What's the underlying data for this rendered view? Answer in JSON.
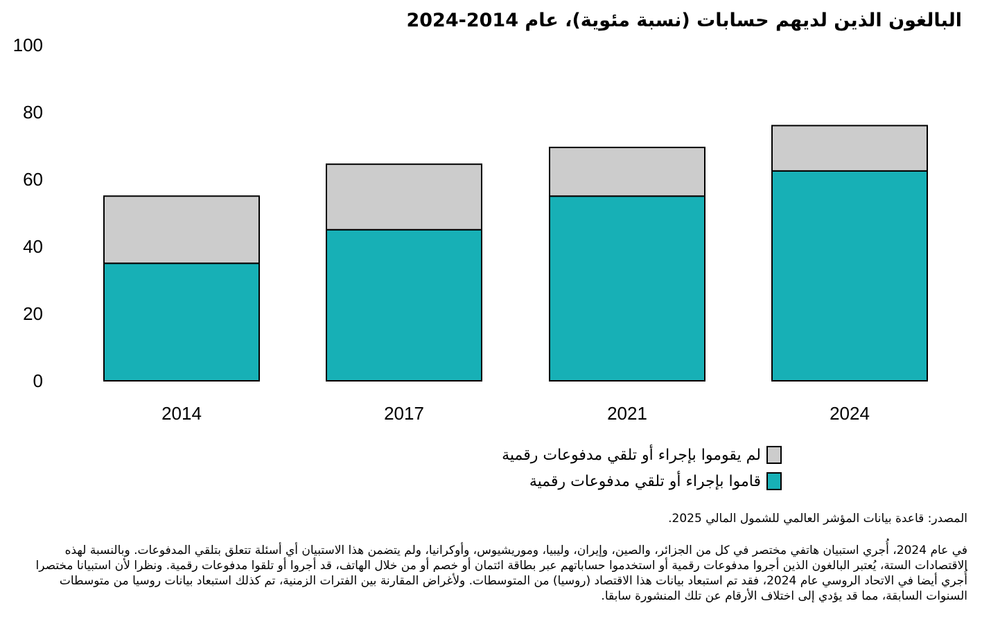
{
  "title": "البالغون الذين لديهم حسابات (نسبة مئوية)، عام 2014-2024",
  "chart_data": {
    "type": "bar",
    "stacked": true,
    "categories": [
      "2014",
      "2017",
      "2021",
      "2024"
    ],
    "series": [
      {
        "name": "قاموا بإجراء أو تلقي مدفوعات رقمية",
        "values": [
          35,
          45,
          55,
          62.5
        ],
        "color": "#17b0b6"
      },
      {
        "name": "لم يقوموا بإجراء أو تلقي مدفوعات رقمية",
        "values": [
          20,
          19.5,
          14.5,
          13.5
        ],
        "color": "#cccccc"
      }
    ],
    "yticks": [
      "0",
      "20",
      "40",
      "60",
      "80",
      "100"
    ],
    "ylim": [
      0,
      100
    ],
    "grid": false,
    "legend_position": "bottom-right"
  },
  "legend": [
    {
      "label": "لم يقوموا بإجراء أو تلقي مدفوعات رقمية",
      "color": "#cccccc"
    },
    {
      "label": "قاموا بإجراء أو تلقي مدفوعات رقمية",
      "color": "#17b0b6"
    }
  ],
  "source": "المصدر: قاعدة بيانات المؤشر العالمي للشمول المالي 2025.",
  "note": "في عام 2024، أُجري استبيان هاتفي مختصر في كل من الجزائر، والصين، وإيران، وليبيا، وموريشيوس، وأوكرانيا، ولم يتضمن هذا الاستبيان أي أسئلة تتعلق بتلقي المدفوعات. وبالنسبة لهذه الاقتصادات الستة، يُعتبر البالغون الذين أجروا مدفوعات رقمية أو استخدموا حساباتهم عبر بطاقة ائتمان أو خصم أو من خلال الهاتف، قد أجروا أو تلقوا مدفوعات رقمية. ونظرا لأن استبيانا مختصرا أُجري أيضا في الاتحاد الروسي عام 2024، فقد تم استبعاد بيانات هذا الاقتصاد (روسيا) من المتوسطات. ولأغراض المقارنة بين الفترات الزمنية، تم كذلك استبعاد بيانات روسيا من متوسطات السنوات السابقة، مما قد يؤدي إلى اختلاف الأرقام عن تلك المنشورة سابقا."
}
